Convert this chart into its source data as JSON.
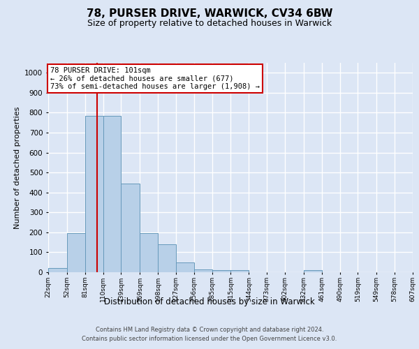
{
  "title1": "78, PURSER DRIVE, WARWICK, CV34 6BW",
  "title2": "Size of property relative to detached houses in Warwick",
  "xlabel": "Distribution of detached houses by size in Warwick",
  "ylabel": "Number of detached properties",
  "bar_values": [
    20,
    195,
    785,
    785,
    445,
    195,
    140,
    50,
    15,
    12,
    12,
    0,
    0,
    0,
    10,
    0,
    0,
    0,
    0,
    0
  ],
  "bin_edges": [
    22,
    52,
    81,
    110,
    139,
    169,
    198,
    227,
    256,
    285,
    315,
    344,
    373,
    402,
    432,
    461,
    490,
    519,
    549,
    578,
    607
  ],
  "tick_labels": [
    "22sqm",
    "52sqm",
    "81sqm",
    "110sqm",
    "139sqm",
    "169sqm",
    "198sqm",
    "227sqm",
    "256sqm",
    "285sqm",
    "315sqm",
    "344sqm",
    "373sqm",
    "402sqm",
    "432sqm",
    "461sqm",
    "490sqm",
    "519sqm",
    "549sqm",
    "578sqm",
    "607sqm"
  ],
  "vline_x": 101,
  "annotation_text": "78 PURSER DRIVE: 101sqm\n← 26% of detached houses are smaller (677)\n73% of semi-detached houses are larger (1,908) →",
  "bar_color": "#b8d0e8",
  "bar_edge_color": "#6699bb",
  "vline_color": "#cc0000",
  "annotation_box_bg": "#ffffff",
  "annotation_box_edge": "#cc0000",
  "ylim": [
    0,
    1050
  ],
  "yticks": [
    0,
    100,
    200,
    300,
    400,
    500,
    600,
    700,
    800,
    900,
    1000
  ],
  "footer1": "Contains HM Land Registry data © Crown copyright and database right 2024.",
  "footer2": "Contains public sector information licensed under the Open Government Licence v3.0.",
  "bg_color": "#dce6f5",
  "grid_color": "#ffffff"
}
